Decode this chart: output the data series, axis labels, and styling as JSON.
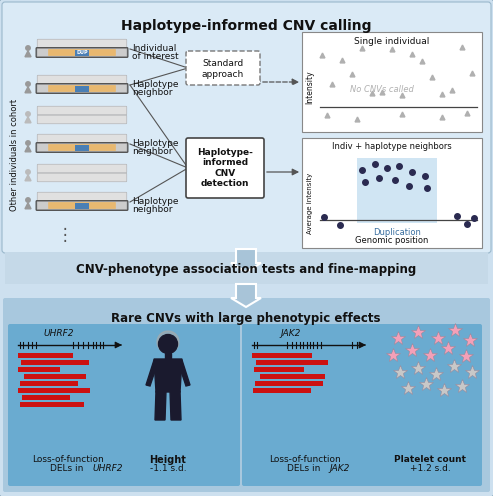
{
  "title": "Haplotype-informed CNV calling",
  "section2_title": "CNV-phenotype association tests and fine-mapping",
  "section3_title": "Rare CNVs with large phenotypic effects",
  "bg_outer": "#cde0ef",
  "bg_top": "#daeaf6",
  "bg_mid": "#c5d9e8",
  "bg_bot_outer": "#a8c8de",
  "bg_bot_inner": "#6aabd0",
  "bar_orange": "#e8b870",
  "bar_blue": "#4a7fb5",
  "bar_gray": "#cccccc",
  "bar_gray2": "#e0e0e0",
  "red_del": "#cc1111",
  "scatter_gray": "#b0b0b0",
  "scatter_dark": "#2a2a50",
  "dup_highlight": "#c5dff0",
  "white": "#ffffff",
  "text_dark": "#111111",
  "arrow_fill": "#a8c4d8",
  "arrow_edge": "#ffffff",
  "person_dark": "#1a1a2e",
  "person_gray": "#999999",
  "person_light": "#bbbbbb"
}
